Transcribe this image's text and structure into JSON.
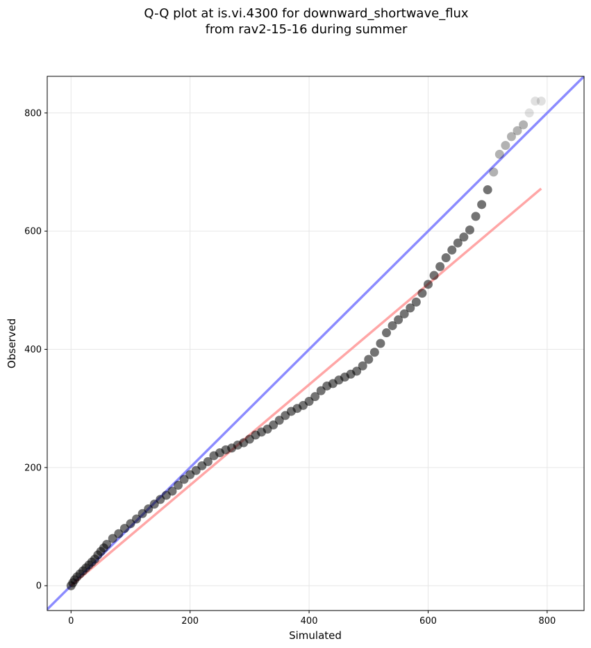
{
  "chart_data": {
    "type": "scatter",
    "title_lines": [
      "Q-Q plot at is.vi.4300 for downward_shortwave_flux",
      "from rav2-15-16 during summer"
    ],
    "xlabel": "Simulated",
    "ylabel": "Observed",
    "xlim": [
      -40,
      862
    ],
    "ylim": [
      -42,
      862
    ],
    "xticks": [
      0,
      200,
      400,
      600,
      800
    ],
    "yticks": [
      0,
      200,
      400,
      600,
      800
    ],
    "grid": true,
    "colors": {
      "points": "#000000",
      "identity_line": "#7777ff",
      "fit_line": "#ff8080",
      "grid": "#e6e6e6"
    },
    "series": [
      {
        "kind": "points",
        "x": [
          0,
          3,
          6,
          10,
          15,
          20,
          25,
          30,
          35,
          40,
          45,
          50,
          55,
          60,
          70,
          80,
          90,
          100,
          110,
          120,
          130,
          140,
          150,
          160,
          170,
          180,
          190,
          200,
          210,
          220,
          230,
          240,
          250,
          260,
          270,
          280,
          290,
          300,
          310,
          320,
          330,
          340,
          350,
          360,
          370,
          380,
          390,
          400,
          410,
          420,
          430,
          440,
          450,
          460,
          470,
          480,
          490,
          500,
          510,
          520,
          530,
          540,
          550,
          560,
          570,
          580,
          590,
          600,
          610,
          620,
          630,
          640,
          650,
          660,
          670,
          680,
          690,
          700,
          710,
          720,
          730,
          740,
          750,
          760,
          770,
          780,
          790
        ],
        "y": [
          0,
          5,
          10,
          15,
          20,
          25,
          30,
          35,
          40,
          45,
          52,
          58,
          64,
          70,
          80,
          88,
          97,
          105,
          113,
          122,
          130,
          138,
          146,
          153,
          160,
          170,
          180,
          188,
          195,
          203,
          210,
          220,
          225,
          230,
          233,
          238,
          242,
          248,
          255,
          260,
          265,
          272,
          280,
          288,
          295,
          300,
          305,
          312,
          320,
          330,
          338,
          342,
          348,
          353,
          358,
          363,
          372,
          383,
          395,
          410,
          428,
          440,
          450,
          460,
          470,
          480,
          495,
          510,
          525,
          540,
          555,
          568,
          580,
          590,
          602,
          625,
          645,
          670,
          700,
          730,
          745,
          760,
          770,
          780,
          800,
          820,
          820
        ]
      },
      {
        "kind": "identity-line",
        "x": [
          -40,
          862
        ],
        "y": [
          -40,
          862
        ]
      },
      {
        "kind": "fit-line",
        "x": [
          0,
          790
        ],
        "y": [
          0,
          672
        ]
      }
    ]
  }
}
